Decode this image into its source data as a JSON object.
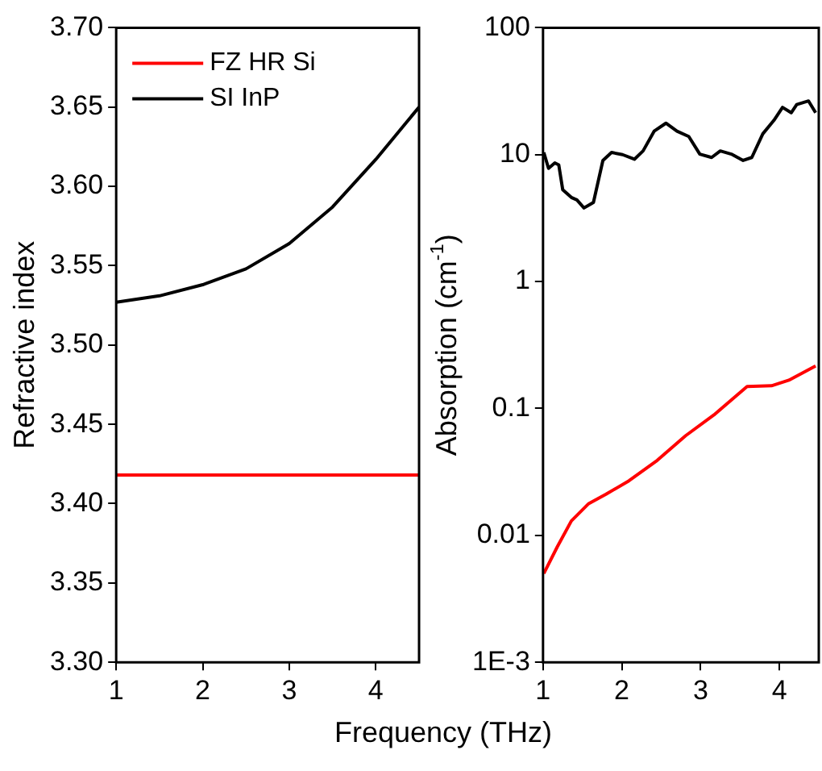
{
  "chart_data": [
    {
      "type": "line",
      "ylabel": "Refractive index",
      "xlabel": "Frequency (THz)",
      "x": [
        1,
        1.5,
        2,
        2.5,
        3,
        3.5,
        4,
        4.5
      ],
      "xlim": [
        1,
        4.5
      ],
      "xticks": [
        1,
        2,
        3,
        4
      ],
      "ylim": [
        3.3,
        3.7
      ],
      "yticks": [
        {
          "value": 3.3,
          "label": "3.30"
        },
        {
          "value": 3.35,
          "label": "3.35"
        },
        {
          "value": 3.4,
          "label": "3.40"
        },
        {
          "value": 3.45,
          "label": "3.45"
        },
        {
          "value": 3.5,
          "label": "3.50"
        },
        {
          "value": 3.55,
          "label": "3.55"
        },
        {
          "value": 3.6,
          "label": "3.60"
        },
        {
          "value": 3.65,
          "label": "3.65"
        },
        {
          "value": 3.7,
          "label": "3.70"
        }
      ],
      "grid": false,
      "legend": "top left",
      "marker": "none",
      "line_style": "solid",
      "series": [
        {
          "name": "FZ HR Si",
          "color": "#ff0000",
          "values": [
            3.418,
            3.418,
            3.418,
            3.418,
            3.418,
            3.418,
            3.418,
            3.418
          ]
        },
        {
          "name": "SI InP",
          "color": "#000000",
          "values": [
            3.527,
            3.531,
            3.538,
            3.548,
            3.564,
            3.587,
            3.617,
            3.65
          ]
        }
      ]
    },
    {
      "type": "line",
      "ylabel": "Absorption (cm$^{-1}$)",
      "xlim": [
        1,
        4.5
      ],
      "xticks": [
        1,
        2,
        3,
        4
      ],
      "ylim": [
        0.001,
        100
      ],
      "yticks": [
        {
          "value": 0.001,
          "label": "1E-3"
        },
        0.01,
        0.1,
        1,
        10,
        100
      ],
      "log": "y",
      "grid": false,
      "marker": "none",
      "line_style": "solid",
      "series": [
        {
          "color": "#000000",
          "x": [
            1.01,
            1.07,
            1.15,
            1.2,
            1.25,
            1.36,
            1.43,
            1.52,
            1.64,
            1.76,
            1.87,
            2.01,
            2.16,
            2.27,
            2.41,
            2.56,
            2.7,
            2.85,
            2.99,
            3.14,
            3.25,
            3.39,
            3.54,
            3.65,
            3.79,
            3.93,
            4.04,
            4.15,
            4.22,
            4.37,
            4.46
          ],
          "values": [
            10.4,
            7.8,
            8.6,
            8.3,
            5.3,
            4.6,
            4.4,
            3.8,
            4.2,
            9.0,
            10.4,
            10,
            9.2,
            10.7,
            15.3,
            17.7,
            15.3,
            13.9,
            10.1,
            9.5,
            10.7,
            10.1,
            9.0,
            9.5,
            14.6,
            18.6,
            23.6,
            21.4,
            24.8,
            26.5,
            21.4
          ]
        },
        {
          "color": "#ff0000",
          "x": [
            1.01,
            1.18,
            1.36,
            1.58,
            1.8,
            2.09,
            2.45,
            2.81,
            3.17,
            3.59,
            3.9,
            4.12,
            4.46
          ],
          "values": [
            0.005,
            0.0081,
            0.013,
            0.0178,
            0.0211,
            0.0269,
            0.039,
            0.061,
            0.089,
            0.149,
            0.151,
            0.167,
            0.216
          ]
        }
      ]
    }
  ]
}
